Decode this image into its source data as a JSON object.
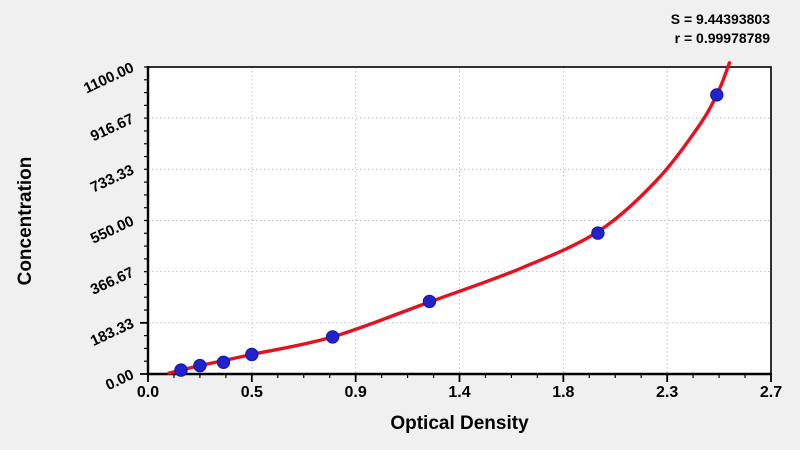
{
  "stats": {
    "s_line": "S = 9.44393803",
    "r_line": "r = 0.99978789"
  },
  "colors": {
    "page_background": "#f0f0f0",
    "plot_background": "#ffffff",
    "curve_red": "#e8101e",
    "point_blue": "#2222cc",
    "point_edge": "#1414aa",
    "grid_gray": "#bfbfbf",
    "axis_black": "#000000"
  },
  "chart_data": {
    "type": "scatter",
    "title": "",
    "xlabel": "Optical Density",
    "ylabel": "Concentration",
    "xlim": [
      0,
      2.7
    ],
    "ylim": [
      0,
      1100
    ],
    "grid": "dotted lines at major ticks, white plot on gray page",
    "legend_position": "none",
    "fit": {
      "S": 9.44393803,
      "r": 0.99978789
    },
    "x_axis": {
      "major_tick_values": [
        0,
        0.45,
        0.9,
        1.35,
        1.8,
        2.25,
        2.7
      ],
      "major_tick_labels": [
        "0.0",
        "0.5",
        "0.9",
        "1.4",
        "1.8",
        "2.3",
        "2.7"
      ],
      "minor_divisions_per_major": 4
    },
    "y_axis": {
      "major_tick_values": [
        0,
        183.33,
        366.67,
        550,
        733.33,
        916.67,
        1100
      ],
      "major_tick_labels": [
        "0.00",
        "183.33",
        "366.67",
        "550.00",
        "733.33",
        "916.67",
        "1100.00"
      ],
      "minor_divisions_per_major": 4,
      "label_rotation_deg": -25
    },
    "series": [
      {
        "name": "standard-points",
        "type": "scatter",
        "color": "#2222cc",
        "points": [
          {
            "od": 0.143,
            "conc": 14
          },
          {
            "od": 0.225,
            "conc": 30
          },
          {
            "od": 0.327,
            "conc": 42
          },
          {
            "od": 0.45,
            "conc": 70
          },
          {
            "od": 0.8,
            "conc": 133
          },
          {
            "od": 1.22,
            "conc": 260
          },
          {
            "od": 1.95,
            "conc": 505
          },
          {
            "od": 2.465,
            "conc": 1000
          }
        ]
      },
      {
        "name": "fitted-curve",
        "type": "line",
        "color": "#e8101e",
        "points": [
          {
            "od": 0.09,
            "conc": 3
          },
          {
            "od": 0.225,
            "conc": 30
          },
          {
            "od": 0.45,
            "conc": 70
          },
          {
            "od": 0.8,
            "conc": 133
          },
          {
            "od": 1.22,
            "conc": 258
          },
          {
            "od": 1.62,
            "conc": 380
          },
          {
            "od": 1.95,
            "conc": 510
          },
          {
            "od": 2.2,
            "conc": 690
          },
          {
            "od": 2.38,
            "conc": 880
          },
          {
            "od": 2.465,
            "conc": 1000
          },
          {
            "od": 2.52,
            "conc": 1115
          }
        ]
      }
    ]
  }
}
